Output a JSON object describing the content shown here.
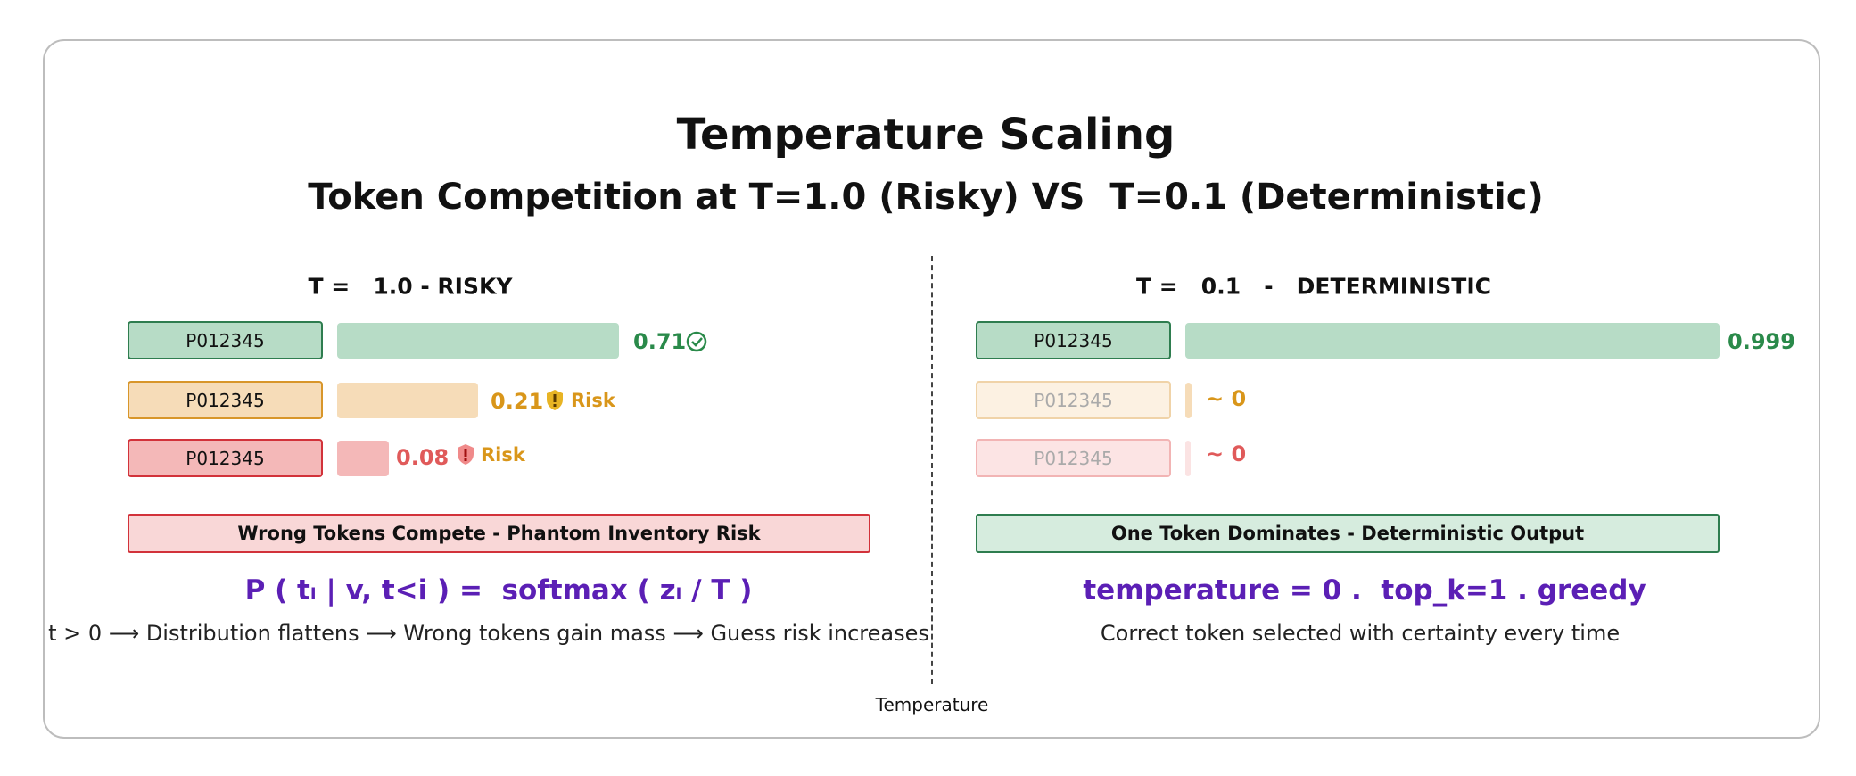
{
  "title": "Temperature Scaling",
  "subtitle": "Token Competition at T=1.0 (Risky) VS  T=0.1 (Deterministic)",
  "axis_label": "Temperature",
  "panels": [
    {
      "header": "T =   1.0 - RISKY",
      "rows": [
        {
          "token": "P012345",
          "value": 0.71
        },
        {
          "token": "P012345",
          "value": 0.21,
          "flag": "Risk"
        },
        {
          "token": "P012345",
          "value": 0.08,
          "flag": "Risk"
        }
      ],
      "banner": "Wrong Tokens Compete - Phantom Inventory Risk",
      "formula": "P ( tᵢ | v, t<i ) =  softmax ( zᵢ / T )",
      "caption": "t > 0 ⟶ Distribution flattens ⟶ Wrong tokens gain mass ⟶ Guess risk increases"
    },
    {
      "header": "T =   0.1   -   DETERMINISTIC",
      "rows": [
        {
          "token": "P012345",
          "value": 0.999
        },
        {
          "token": "P012345",
          "value": "~ 0"
        },
        {
          "token": "P012345",
          "value": "~ 0"
        }
      ],
      "banner": "One Token Dominates - Deterministic Output",
      "formula": "temperature = 0 .  top_k=1 . greedy",
      "caption": "Correct token selected with certainty every time"
    }
  ]
}
